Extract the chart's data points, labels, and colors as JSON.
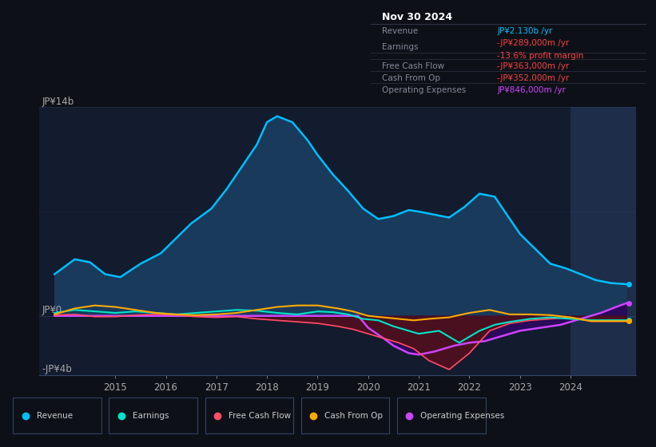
{
  "bg_color": "#0d1117",
  "plot_bg_color": "#131b2e",
  "highlight_bg": "#1e2d4a",
  "ylim": [
    -4000,
    14000
  ],
  "xlim": [
    2013.5,
    2025.3
  ],
  "x_ticks": [
    2015,
    2016,
    2017,
    2018,
    2019,
    2020,
    2021,
    2022,
    2023,
    2024
  ],
  "y_label_top": "JP¥14b",
  "y_label_zero": "JP¥0",
  "y_label_bottom": "-JP¥4b",
  "legend": [
    {
      "label": "Revenue",
      "color": "#00bfff"
    },
    {
      "label": "Earnings",
      "color": "#00e5c8"
    },
    {
      "label": "Free Cash Flow",
      "color": "#ff4d6a"
    },
    {
      "label": "Cash From Op",
      "color": "#ffaa00"
    },
    {
      "label": "Operating Expenses",
      "color": "#cc44ff"
    }
  ],
  "info_box": {
    "date": "Nov 30 2024",
    "rows": [
      {
        "label": "Revenue",
        "value": "JP¥2.130b /yr",
        "value_color": "#00bfff",
        "extra": null
      },
      {
        "label": "Earnings",
        "value": "-JP¥289,000m /yr",
        "value_color": "#ff4040",
        "extra": "-13.6% profit margin"
      },
      {
        "label": "Free Cash Flow",
        "value": "-JP¥363,000m /yr",
        "value_color": "#ff4040",
        "extra": null
      },
      {
        "label": "Cash From Op",
        "value": "-JP¥352,000m /yr",
        "value_color": "#ff4040",
        "extra": null
      },
      {
        "label": "Operating Expenses",
        "value": "JP¥846,000m /yr",
        "value_color": "#cc44ff",
        "extra": null
      }
    ]
  },
  "revenue_x": [
    2013.8,
    2014.2,
    2014.5,
    2014.8,
    2015.1,
    2015.5,
    2015.9,
    2016.2,
    2016.5,
    2016.9,
    2017.2,
    2017.5,
    2017.8,
    2018.0,
    2018.2,
    2018.5,
    2018.8,
    2019.0,
    2019.3,
    2019.6,
    2019.9,
    2020.2,
    2020.5,
    2020.8,
    2021.0,
    2021.3,
    2021.6,
    2021.9,
    2022.2,
    2022.5,
    2022.7,
    2023.0,
    2023.3,
    2023.6,
    2023.9,
    2024.2,
    2024.5,
    2024.8,
    2025.1
  ],
  "revenue_y": [
    2800,
    3800,
    3600,
    2800,
    2600,
    3500,
    4200,
    5200,
    6200,
    7200,
    8500,
    10000,
    11500,
    13000,
    13400,
    13000,
    11800,
    10800,
    9500,
    8400,
    7200,
    6500,
    6700,
    7100,
    7000,
    6800,
    6600,
    7300,
    8200,
    8000,
    7000,
    5500,
    4500,
    3500,
    3200,
    2800,
    2400,
    2200,
    2130
  ],
  "earnings_x": [
    2013.8,
    2014.2,
    2014.6,
    2015.0,
    2015.4,
    2015.8,
    2016.2,
    2016.6,
    2017.0,
    2017.4,
    2017.8,
    2018.2,
    2018.6,
    2019.0,
    2019.3,
    2019.6,
    2019.9,
    2020.2,
    2020.5,
    2020.8,
    2021.0,
    2021.4,
    2021.8,
    2022.2,
    2022.5,
    2022.8,
    2023.2,
    2023.6,
    2024.0,
    2024.4,
    2024.8,
    2025.1
  ],
  "earnings_y": [
    200,
    400,
    300,
    200,
    300,
    200,
    100,
    200,
    300,
    400,
    350,
    200,
    100,
    300,
    250,
    100,
    -200,
    -300,
    -700,
    -1000,
    -1200,
    -1000,
    -1800,
    -1000,
    -600,
    -400,
    -200,
    -100,
    -200,
    -289,
    -289,
    -289
  ],
  "fcf_x": [
    2013.8,
    2014.2,
    2014.6,
    2015.0,
    2015.4,
    2015.8,
    2016.2,
    2016.6,
    2017.0,
    2017.4,
    2017.8,
    2018.2,
    2018.6,
    2019.0,
    2019.4,
    2019.7,
    2020.0,
    2020.3,
    2020.6,
    2020.9,
    2021.2,
    2021.6,
    2022.0,
    2022.4,
    2022.8,
    2023.2,
    2023.6,
    2024.0,
    2024.4,
    2024.8,
    2025.1
  ],
  "fcf_y": [
    50,
    100,
    -50,
    -50,
    50,
    100,
    50,
    -50,
    -100,
    -50,
    -200,
    -300,
    -400,
    -500,
    -700,
    -900,
    -1200,
    -1500,
    -1800,
    -2200,
    -3000,
    -3600,
    -2500,
    -1000,
    -500,
    -300,
    -200,
    -100,
    -363,
    -363,
    -363
  ],
  "cfo_x": [
    2013.8,
    2014.2,
    2014.6,
    2015.0,
    2015.4,
    2015.8,
    2016.2,
    2016.6,
    2017.0,
    2017.4,
    2017.8,
    2018.2,
    2018.6,
    2019.0,
    2019.4,
    2019.7,
    2020.0,
    2020.3,
    2020.6,
    2020.9,
    2021.2,
    2021.6,
    2022.0,
    2022.4,
    2022.8,
    2023.2,
    2023.6,
    2024.0,
    2024.4,
    2024.8,
    2025.1
  ],
  "cfo_y": [
    100,
    500,
    700,
    600,
    400,
    200,
    100,
    50,
    100,
    200,
    400,
    600,
    700,
    700,
    500,
    300,
    0,
    -100,
    -200,
    -300,
    -200,
    -100,
    200,
    400,
    100,
    100,
    50,
    -100,
    -352,
    -352,
    -352
  ],
  "opex_x": [
    2013.8,
    2019.8,
    2020.0,
    2020.3,
    2020.5,
    2020.8,
    2021.0,
    2021.3,
    2021.7,
    2022.0,
    2022.3,
    2022.6,
    2023.0,
    2023.4,
    2023.8,
    2024.0,
    2024.3,
    2024.6,
    2024.9,
    2025.1
  ],
  "opex_y": [
    0,
    0,
    -800,
    -1500,
    -2000,
    -2500,
    -2600,
    -2400,
    -2000,
    -1800,
    -1700,
    -1400,
    -1000,
    -800,
    -600,
    -400,
    -100,
    200,
    600,
    846
  ],
  "highlight_x_start": 2024.0,
  "highlight_x_end": 2025.3,
  "right_labels": [
    {
      "y": 2130,
      "color": "#00bfff",
      "marker": "o"
    },
    {
      "y": -289,
      "color": "#00e5c8",
      "marker": "o"
    },
    {
      "y": -352,
      "color": "#ffaa00",
      "marker": "o"
    },
    {
      "y": 846,
      "color": "#cc44ff",
      "marker": "o"
    }
  ]
}
